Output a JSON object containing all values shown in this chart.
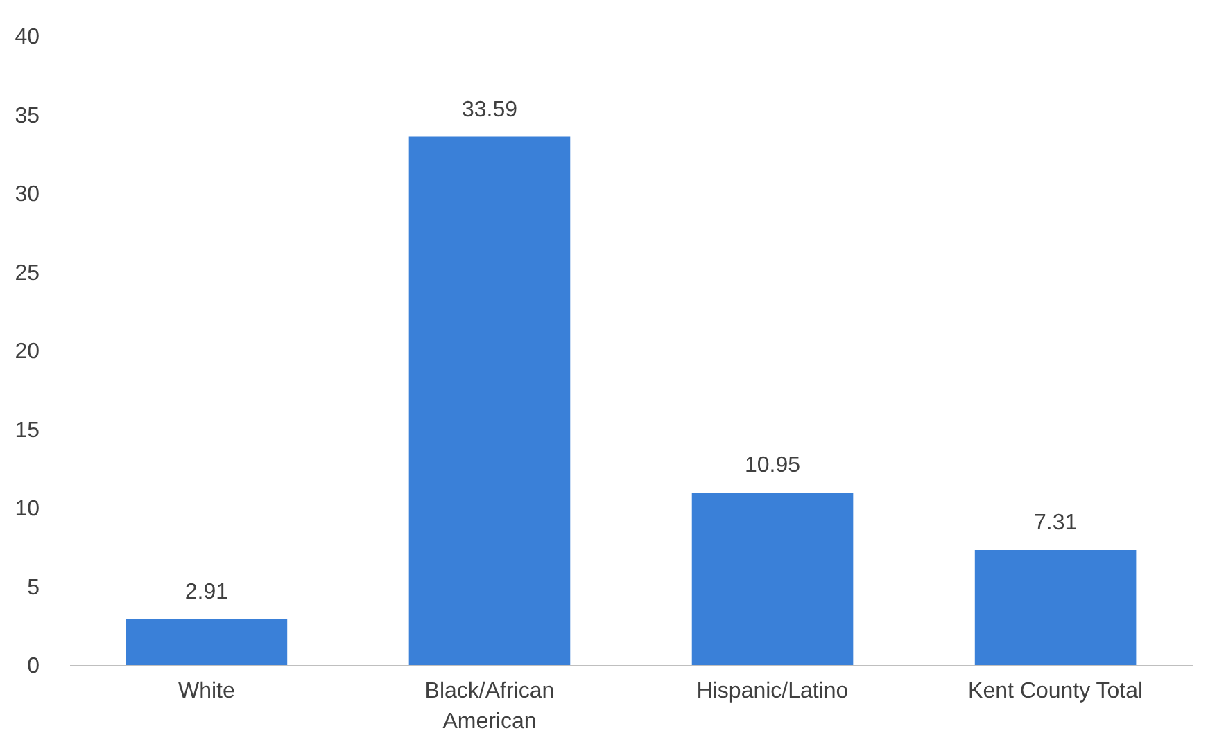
{
  "chart_data": {
    "type": "bar",
    "categories": [
      "White",
      "Black/African American",
      "Hispanic/Latino",
      "Kent County Total"
    ],
    "values": [
      2.91,
      33.59,
      10.95,
      7.31
    ],
    "color": "#3a80d8",
    "ylim": [
      0,
      40
    ],
    "yticks": [
      0,
      5,
      10,
      15,
      20,
      25,
      30,
      35,
      40
    ],
    "grid": false,
    "data_labels": true
  }
}
